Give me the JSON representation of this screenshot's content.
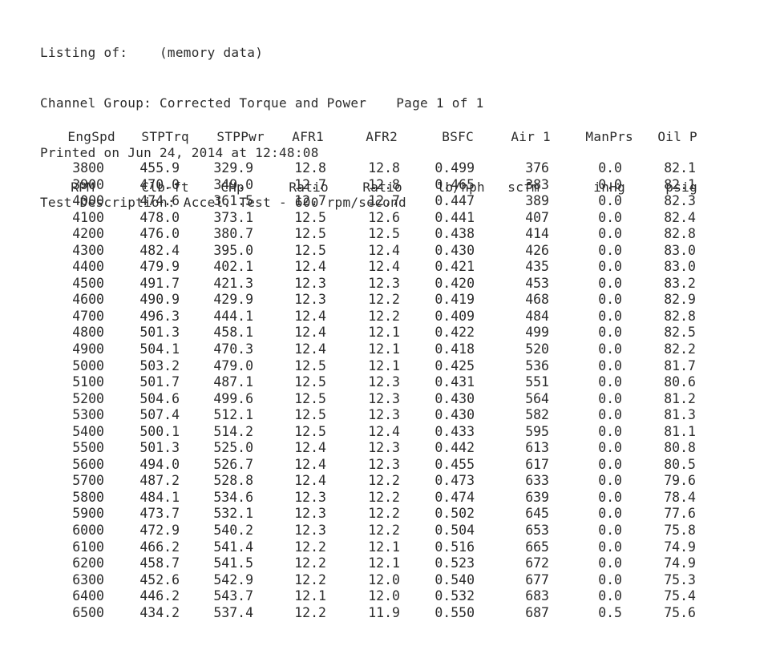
{
  "header": {
    "listing_label": "Listing of:",
    "listing_value": "(memory data)",
    "channel_group": "Channel Group: Corrected Torque and Power",
    "page": "Page 1 of 1",
    "printed": "Printed on Jun 24, 2014 at 12:48:08",
    "description": "Test Description: Accel. Test - 600 rpm/second"
  },
  "table": {
    "columns": [
      {
        "name": "EngSpd",
        "unit": "RPM"
      },
      {
        "name": "STPTrq",
        "unit": "Clb-ft"
      },
      {
        "name": "STPPwr",
        "unit": "CHp"
      },
      {
        "name": "AFR1",
        "unit": "Ratio"
      },
      {
        "name": "AFR2",
        "unit": "Ratio"
      },
      {
        "name": "BSFC",
        "unit": "lb/hph"
      },
      {
        "name": "Air 1",
        "unit": "scfm"
      },
      {
        "name": "ManPrs",
        "unit": "inHg"
      },
      {
        "name": "Oil P",
        "unit": "psig"
      }
    ],
    "rows": [
      [
        "3800",
        "455.9",
        "329.9",
        "12.8",
        "12.8",
        "0.499",
        "376",
        "0.0",
        "82.1"
      ],
      [
        "3900",
        "470.0",
        "349.0",
        "12.7",
        "12.8",
        "0.465",
        "383",
        "0.0",
        "82.1"
      ],
      [
        "4000",
        "474.6",
        "361.5",
        "12.7",
        "12.7",
        "0.447",
        "389",
        "0.0",
        "82.3"
      ],
      [
        "4100",
        "478.0",
        "373.1",
        "12.5",
        "12.6",
        "0.441",
        "407",
        "0.0",
        "82.4"
      ],
      [
        "4200",
        "476.0",
        "380.7",
        "12.5",
        "12.5",
        "0.438",
        "414",
        "0.0",
        "82.8"
      ],
      [
        "4300",
        "482.4",
        "395.0",
        "12.5",
        "12.4",
        "0.430",
        "426",
        "0.0",
        "83.0"
      ],
      [
        "4400",
        "479.9",
        "402.1",
        "12.4",
        "12.4",
        "0.421",
        "435",
        "0.0",
        "83.0"
      ],
      [
        "4500",
        "491.7",
        "421.3",
        "12.3",
        "12.3",
        "0.420",
        "453",
        "0.0",
        "83.2"
      ],
      [
        "4600",
        "490.9",
        "429.9",
        "12.3",
        "12.2",
        "0.419",
        "468",
        "0.0",
        "82.9"
      ],
      [
        "4700",
        "496.3",
        "444.1",
        "12.4",
        "12.2",
        "0.409",
        "484",
        "0.0",
        "82.8"
      ],
      [
        "4800",
        "501.3",
        "458.1",
        "12.4",
        "12.1",
        "0.422",
        "499",
        "0.0",
        "82.5"
      ],
      [
        "4900",
        "504.1",
        "470.3",
        "12.4",
        "12.1",
        "0.418",
        "520",
        "0.0",
        "82.2"
      ],
      [
        "5000",
        "503.2",
        "479.0",
        "12.5",
        "12.1",
        "0.425",
        "536",
        "0.0",
        "81.7"
      ],
      [
        "5100",
        "501.7",
        "487.1",
        "12.5",
        "12.3",
        "0.431",
        "551",
        "0.0",
        "80.6"
      ],
      [
        "5200",
        "504.6",
        "499.6",
        "12.5",
        "12.3",
        "0.430",
        "564",
        "0.0",
        "81.2"
      ],
      [
        "5300",
        "507.4",
        "512.1",
        "12.5",
        "12.3",
        "0.430",
        "582",
        "0.0",
        "81.3"
      ],
      [
        "5400",
        "500.1",
        "514.2",
        "12.5",
        "12.4",
        "0.433",
        "595",
        "0.0",
        "81.1"
      ],
      [
        "5500",
        "501.3",
        "525.0",
        "12.4",
        "12.3",
        "0.442",
        "613",
        "0.0",
        "80.8"
      ],
      [
        "5600",
        "494.0",
        "526.7",
        "12.4",
        "12.3",
        "0.455",
        "617",
        "0.0",
        "80.5"
      ],
      [
        "5700",
        "487.2",
        "528.8",
        "12.4",
        "12.2",
        "0.473",
        "633",
        "0.0",
        "79.6"
      ],
      [
        "5800",
        "484.1",
        "534.6",
        "12.3",
        "12.2",
        "0.474",
        "639",
        "0.0",
        "78.4"
      ],
      [
        "5900",
        "473.7",
        "532.1",
        "12.3",
        "12.2",
        "0.502",
        "645",
        "0.0",
        "77.6"
      ],
      [
        "6000",
        "472.9",
        "540.2",
        "12.3",
        "12.2",
        "0.504",
        "653",
        "0.0",
        "75.8"
      ],
      [
        "6100",
        "466.2",
        "541.4",
        "12.2",
        "12.1",
        "0.516",
        "665",
        "0.0",
        "74.9"
      ],
      [
        "6200",
        "458.7",
        "541.5",
        "12.2",
        "12.1",
        "0.523",
        "672",
        "0.0",
        "74.9"
      ],
      [
        "6300",
        "452.6",
        "542.9",
        "12.2",
        "12.0",
        "0.540",
        "677",
        "0.0",
        "75.3"
      ],
      [
        "6400",
        "446.2",
        "543.7",
        "12.1",
        "12.0",
        "0.532",
        "683",
        "0.0",
        "75.4"
      ],
      [
        "6500",
        "434.2",
        "537.4",
        "12.2",
        "11.9",
        "0.550",
        "687",
        "0.5",
        "75.6"
      ]
    ]
  }
}
